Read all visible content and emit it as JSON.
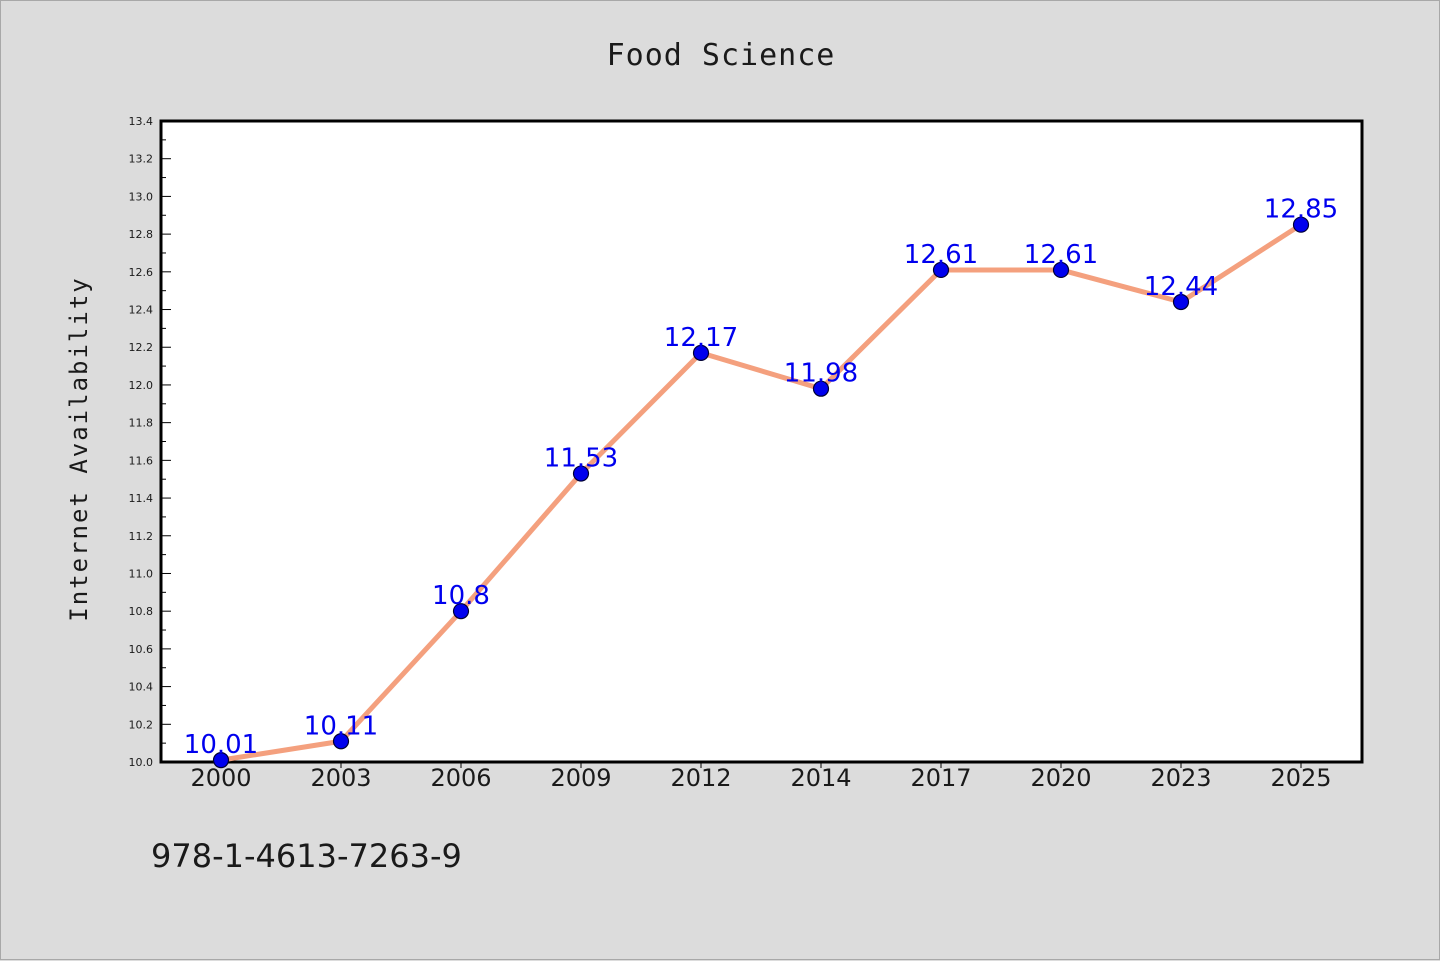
{
  "chart_data": {
    "type": "line",
    "title": "Food Science",
    "xlabel": "",
    "ylabel": "Internet Availability",
    "categories": [
      "2000",
      "2003",
      "2006",
      "2009",
      "2012",
      "2014",
      "2017",
      "2020",
      "2023",
      "2025"
    ],
    "series": [
      {
        "values": [
          10.01,
          10.11,
          10.8,
          11.53,
          12.17,
          11.98,
          12.61,
          12.61,
          12.44,
          12.85
        ],
        "labels": [
          "10.01",
          "10.11",
          "10.8",
          "11.53",
          "12.17",
          "11.98",
          "12.61",
          "12.61",
          "12.44",
          "12.85"
        ]
      }
    ],
    "ylim": [
      10.0,
      13.4
    ],
    "yticks": [
      "10.0",
      "10.2",
      "10.4",
      "10.6",
      "10.8",
      "11.0",
      "11.2",
      "11.4",
      "11.6",
      "11.8",
      "12.0",
      "12.2",
      "12.4",
      "12.6",
      "12.8",
      "13.0",
      "13.2",
      "13.4"
    ],
    "grid": false,
    "colors": {
      "line": "#f4a07e",
      "marker": "#0000ee",
      "marker_edge": "#000033",
      "data_label": "#0000ee",
      "background": "#dcdcdc",
      "plot_background": "#ffffff"
    }
  },
  "footer": {
    "code": "978-1-4613-7263-9"
  }
}
